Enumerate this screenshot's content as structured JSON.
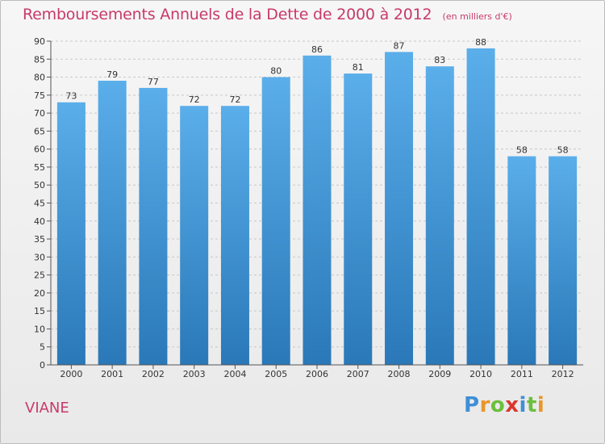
{
  "chart_data": {
    "type": "bar",
    "title": "Remboursements Annuels de la Dette de 2000 à 2012",
    "unit_note": "(en milliers d'€)",
    "xlabel": "",
    "ylabel": "",
    "categories": [
      "2000",
      "2001",
      "2002",
      "2003",
      "2004",
      "2005",
      "2006",
      "2007",
      "2008",
      "2009",
      "2010",
      "2011",
      "2012"
    ],
    "values": [
      73,
      79,
      77,
      72,
      72,
      80,
      86,
      81,
      87,
      83,
      88,
      58,
      58
    ],
    "ylim": [
      0,
      90
    ],
    "yticks": [
      0,
      5,
      10,
      15,
      20,
      25,
      30,
      35,
      40,
      45,
      50,
      55,
      60,
      65,
      70,
      75,
      80,
      85,
      90
    ],
    "grid": "horizontal dashed",
    "legend": "none",
    "bar_color_top": "#5aaeea",
    "bar_color_bottom": "#2a78b8"
  },
  "footer": {
    "region": "VIANE",
    "brand": [
      "P",
      "r",
      "o",
      "x",
      "i",
      "t",
      "i"
    ]
  }
}
